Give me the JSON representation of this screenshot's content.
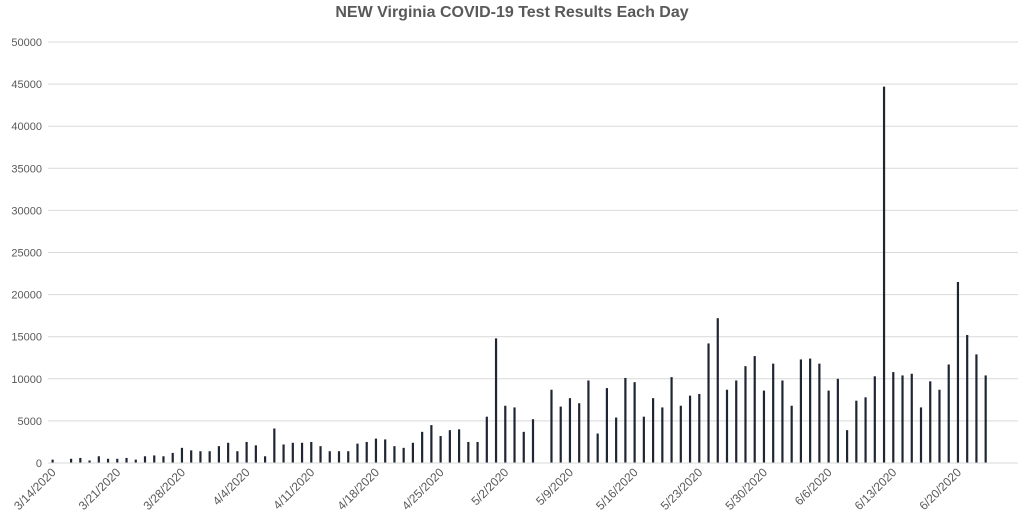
{
  "chart_data": {
    "type": "bar",
    "title": "NEW Virginia COVID-19 Test Results Each Day",
    "xlabel": "",
    "ylabel": "",
    "ylim": [
      0,
      50000
    ],
    "yticks": [
      0,
      5000,
      10000,
      15000,
      20000,
      25000,
      30000,
      35000,
      40000,
      45000,
      50000
    ],
    "grid": true,
    "legend": "none",
    "bar_color": "#1f2633",
    "grid_color": "#d9d9d9",
    "x_tick_labels": [
      "3/14/2020",
      "3/21/2020",
      "3/28/2020",
      "4/4/2020",
      "4/11/2020",
      "4/18/2020",
      "4/25/2020",
      "5/2/2020",
      "5/9/2020",
      "5/16/2020",
      "5/23/2020",
      "5/30/2020",
      "6/6/2020",
      "6/13/2020",
      "6/20/2020"
    ],
    "categories": [
      "3/14/2020",
      "3/15/2020",
      "3/16/2020",
      "3/17/2020",
      "3/18/2020",
      "3/19/2020",
      "3/20/2020",
      "3/21/2020",
      "3/22/2020",
      "3/23/2020",
      "3/24/2020",
      "3/25/2020",
      "3/26/2020",
      "3/27/2020",
      "3/28/2020",
      "3/29/2020",
      "3/30/2020",
      "3/31/2020",
      "4/1/2020",
      "4/2/2020",
      "4/3/2020",
      "4/4/2020",
      "4/5/2020",
      "4/6/2020",
      "4/7/2020",
      "4/8/2020",
      "4/9/2020",
      "4/10/2020",
      "4/11/2020",
      "4/12/2020",
      "4/13/2020",
      "4/14/2020",
      "4/15/2020",
      "4/16/2020",
      "4/17/2020",
      "4/18/2020",
      "4/19/2020",
      "4/20/2020",
      "4/21/2020",
      "4/22/2020",
      "4/23/2020",
      "4/24/2020",
      "4/25/2020",
      "4/26/2020",
      "4/27/2020",
      "4/28/2020",
      "4/29/2020",
      "4/30/2020",
      "5/1/2020",
      "5/2/2020",
      "5/3/2020",
      "5/4/2020",
      "5/5/2020",
      "5/6/2020",
      "5/7/2020",
      "5/8/2020",
      "5/9/2020",
      "5/10/2020",
      "5/11/2020",
      "5/12/2020",
      "5/13/2020",
      "5/14/2020",
      "5/15/2020",
      "5/16/2020",
      "5/17/2020",
      "5/18/2020",
      "5/19/2020",
      "5/20/2020",
      "5/21/2020",
      "5/22/2020",
      "5/23/2020",
      "5/24/2020",
      "5/25/2020",
      "5/26/2020",
      "5/27/2020",
      "5/28/2020",
      "5/29/2020",
      "5/30/2020",
      "5/31/2020",
      "6/1/2020",
      "6/2/2020",
      "6/3/2020",
      "6/4/2020",
      "6/5/2020",
      "6/6/2020",
      "6/7/2020",
      "6/8/2020",
      "6/9/2020",
      "6/10/2020",
      "6/11/2020",
      "6/12/2020",
      "6/13/2020",
      "6/14/2020",
      "6/15/2020",
      "6/16/2020",
      "6/17/2020",
      "6/18/2020",
      "6/19/2020",
      "6/20/2020",
      "6/21/2020",
      "6/22/2020",
      "6/23/2020",
      "6/24/2020",
      "6/25/2020",
      "6/26/2020"
    ],
    "series": [
      {
        "values": [
          400,
          0,
          500,
          600,
          300,
          800,
          500,
          500,
          600,
          400,
          800,
          900,
          800,
          1200,
          1800,
          1500,
          1400,
          1400,
          2000,
          2400,
          1400,
          2500,
          2100,
          800,
          4100,
          2200,
          2400,
          2400,
          2500,
          2000,
          1400,
          1400,
          1400,
          2300,
          2500,
          2900,
          2800,
          2000,
          1800,
          2400,
          3700,
          4500,
          3200,
          3900,
          4000,
          2500,
          2500,
          5500,
          14800,
          6800,
          6600,
          3700,
          5200,
          0,
          8700,
          6700,
          7700,
          7100,
          9800,
          3500,
          8900,
          5400,
          10100,
          9600,
          5500,
          7700,
          6600,
          10200,
          6800,
          8000,
          8200,
          14200,
          17200,
          8700,
          9800,
          11500,
          12700,
          8600,
          11800,
          9800,
          6800,
          12300,
          12400,
          11800,
          8600,
          10000,
          3900,
          7400,
          7800,
          10300,
          44700,
          10800,
          10400,
          10600,
          6600,
          9700,
          8700,
          11700,
          21500,
          15200,
          12900,
          10400,
          0,
          0,
          0
        ]
      }
    ]
  }
}
